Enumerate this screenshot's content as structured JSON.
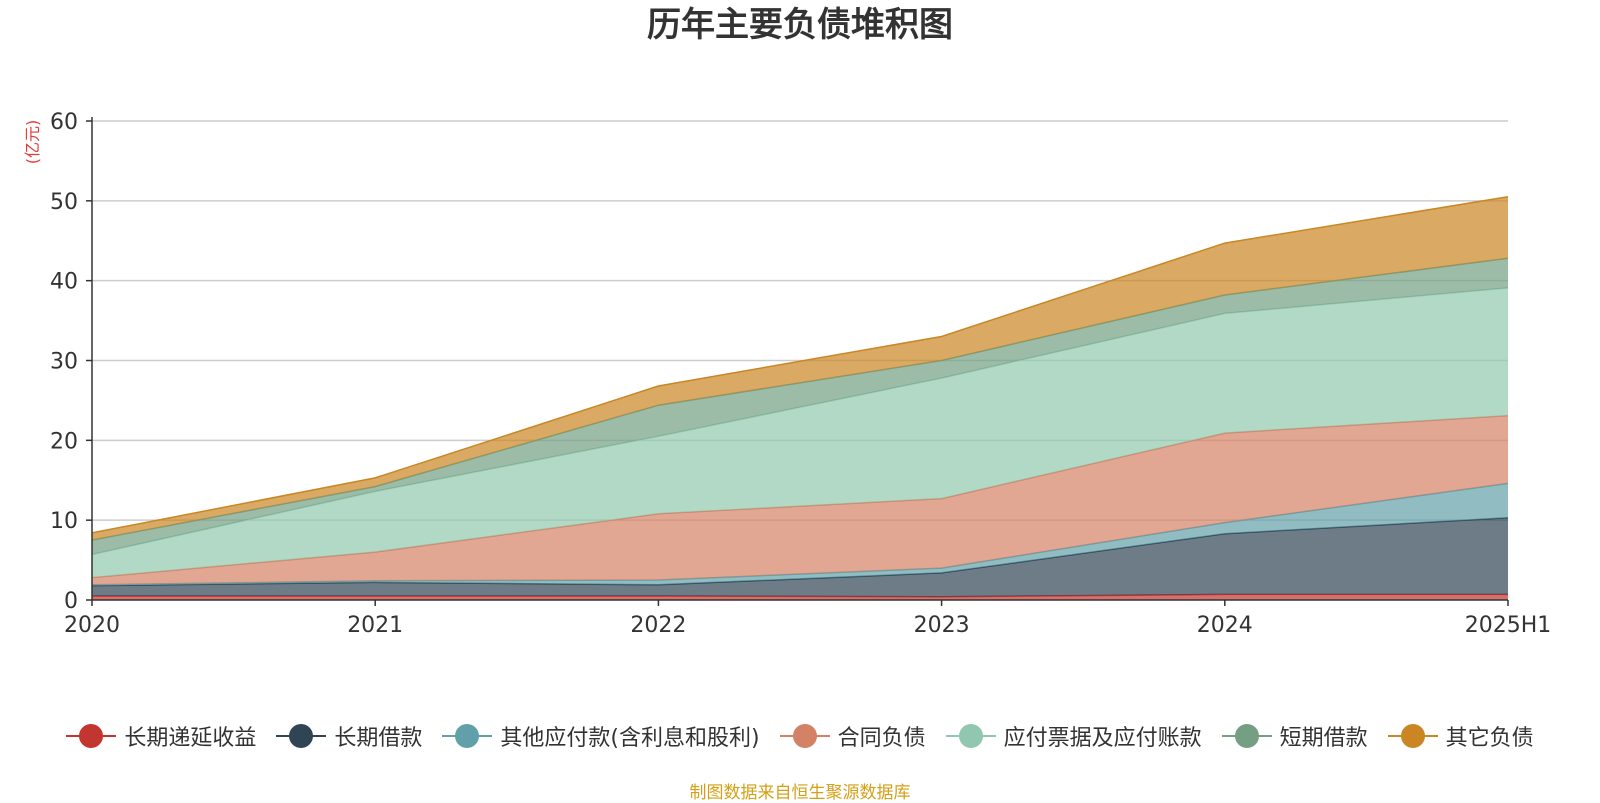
{
  "chart_data": {
    "type": "area",
    "stacked": true,
    "title": "历年主要负债堆积图",
    "ylabel": "(亿元)",
    "xlabel": "",
    "categories": [
      "2020",
      "2021",
      "2022",
      "2023",
      "2024",
      "2025H1"
    ],
    "ylim": [
      0,
      60
    ],
    "yticks": [
      0,
      10,
      20,
      30,
      40,
      50,
      60
    ],
    "grid": true,
    "legend_position": "bottom",
    "series": [
      {
        "name": "长期递延收益",
        "color": "#c23531",
        "values": [
          0.5,
          0.5,
          0.5,
          0.4,
          0.7,
          0.7
        ]
      },
      {
        "name": "长期借款",
        "color": "#2f4554",
        "values": [
          1.3,
          1.7,
          1.4,
          3.0,
          7.6,
          9.6
        ]
      },
      {
        "name": "其他应付款(含利息和股利)",
        "color": "#61a0a8",
        "values": [
          0.1,
          0.2,
          0.6,
          0.6,
          1.4,
          4.3
        ]
      },
      {
        "name": "合同负债",
        "color": "#d48265",
        "values": [
          0.9,
          3.6,
          8.3,
          8.7,
          11.2,
          8.5
        ]
      },
      {
        "name": "应付票据及应付账款",
        "color": "#91c7ae",
        "values": [
          2.9,
          7.6,
          9.7,
          15.1,
          15.0,
          16.0
        ]
      },
      {
        "name": "短期借款",
        "color": "#749f83",
        "values": [
          1.8,
          0.6,
          3.9,
          2.2,
          2.3,
          3.7
        ]
      },
      {
        "name": "其它负债",
        "color": "#ca8622",
        "values": [
          0.9,
          1.1,
          2.4,
          3.0,
          6.5,
          7.7
        ]
      }
    ]
  },
  "source_note": "制图数据来自恒生聚源数据库"
}
